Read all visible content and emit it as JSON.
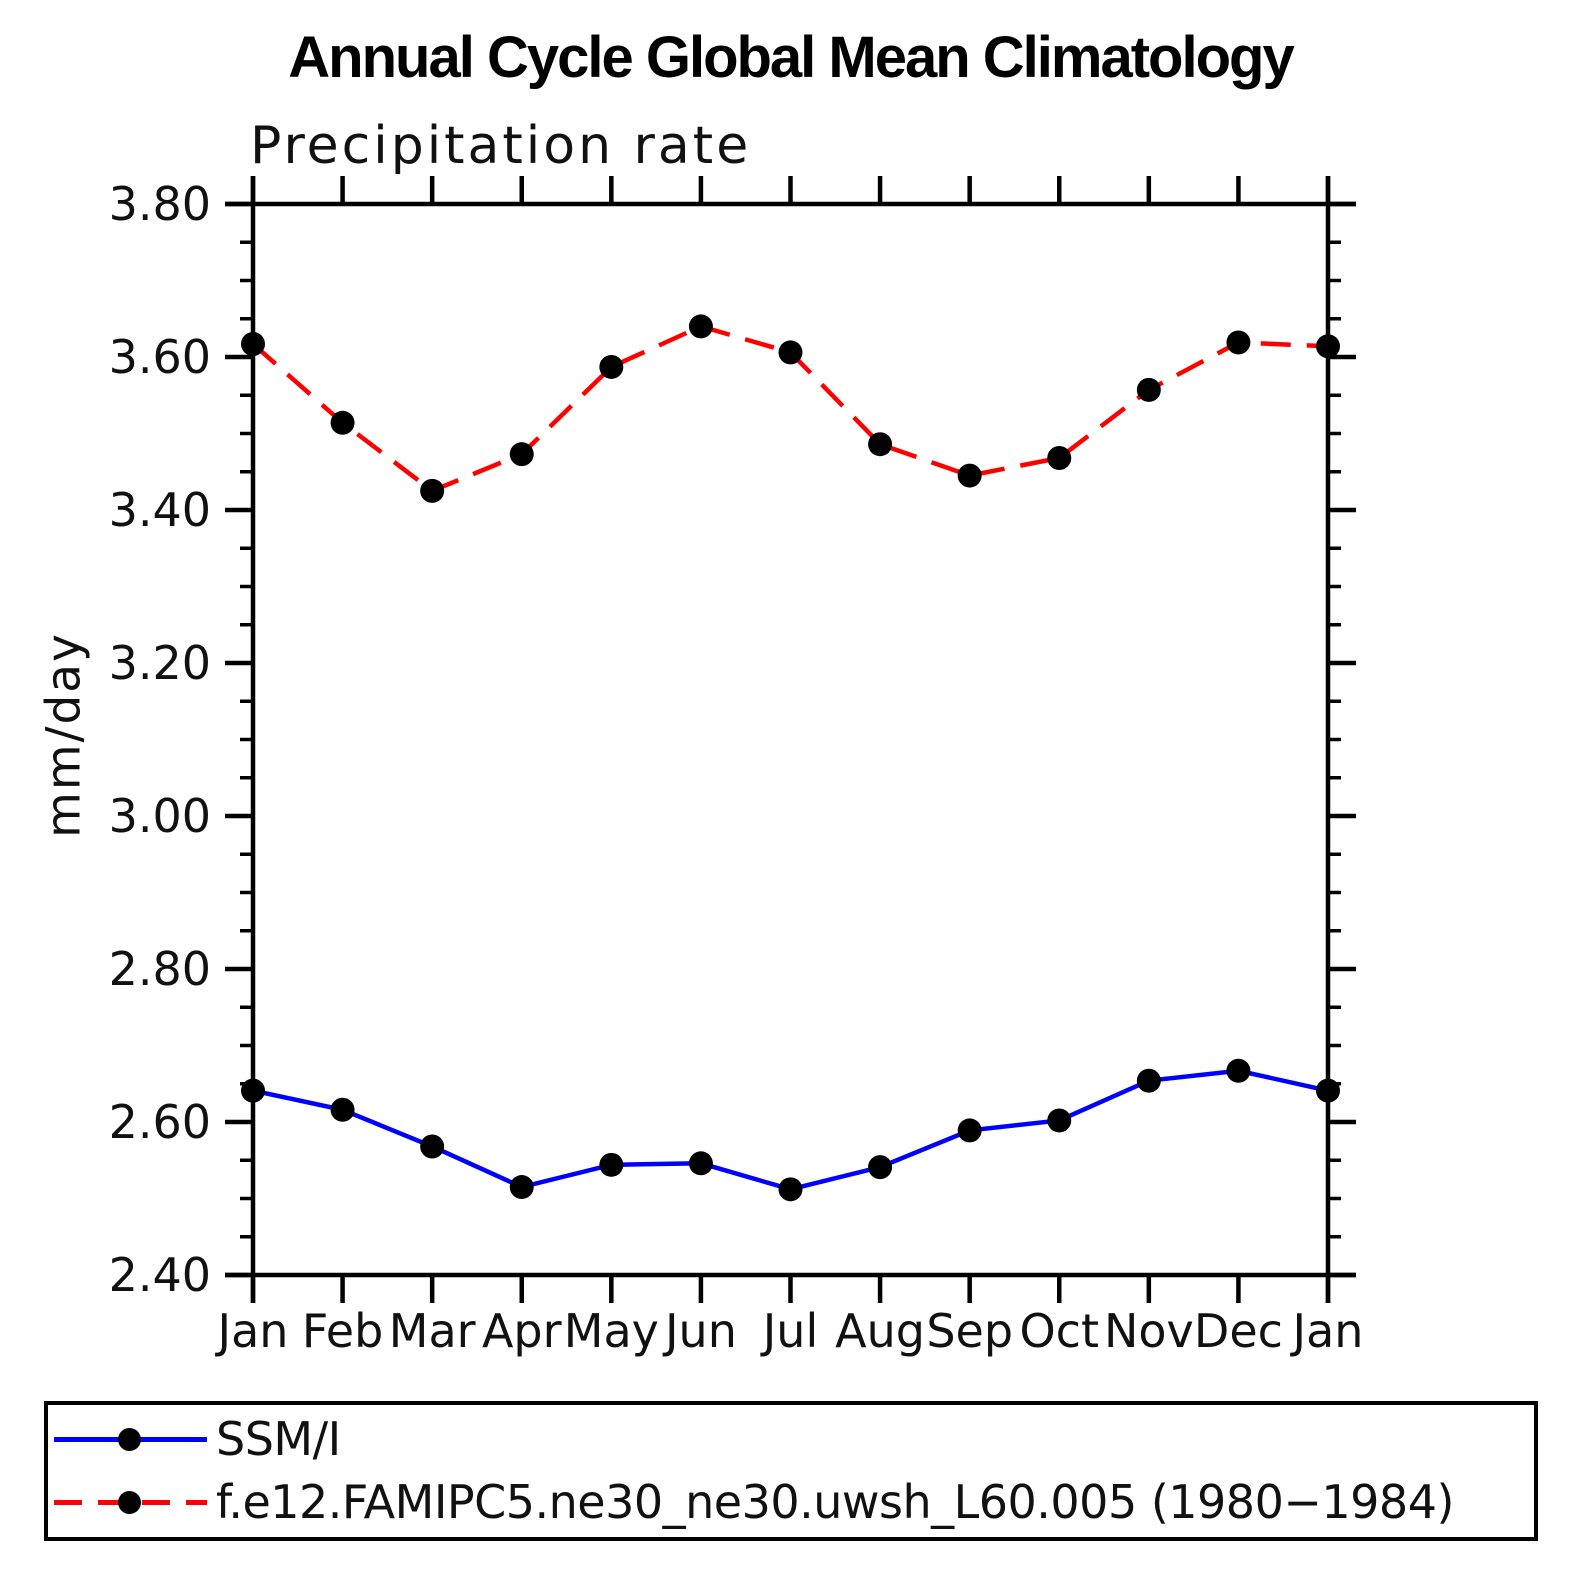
{
  "chart_data": {
    "type": "line",
    "title": "Annual Cycle Global Mean Climatology",
    "subtitle": "Precipitation rate",
    "ylabel": "mm/day",
    "xlabel": "",
    "categories": [
      "Jan",
      "Feb",
      "Mar",
      "Apr",
      "May",
      "Jun",
      "Jul",
      "Aug",
      "Sep",
      "Oct",
      "Nov",
      "Dec",
      "Jan"
    ],
    "series": [
      {
        "name": "SSM/I",
        "color": "#0000ff",
        "line_style": "solid",
        "marker": "circle",
        "marker_color": "#000000",
        "values": [
          2.641,
          2.616,
          2.568,
          2.515,
          2.544,
          2.546,
          2.512,
          2.541,
          2.589,
          2.602,
          2.654,
          2.667,
          2.641
        ]
      },
      {
        "name": "f.e12.FAMIPC5.ne30_ne30.uwsh_L60.005 (1980−1984)",
        "color": "#ff0000",
        "line_style": "dashed",
        "marker": "circle",
        "marker_color": "#000000",
        "values": [
          3.617,
          3.514,
          3.425,
          3.473,
          3.587,
          3.64,
          3.606,
          3.486,
          3.445,
          3.468,
          3.557,
          3.619,
          3.614
        ]
      }
    ],
    "ylim": [
      2.4,
      3.8
    ],
    "y_major_step": 0.2,
    "y_minor_step": 0.05,
    "y_tick_labels": [
      "2.40",
      "2.60",
      "2.80",
      "3.00",
      "3.20",
      "3.40",
      "3.60",
      "3.80"
    ],
    "grid": false,
    "legend_position": "bottom",
    "axis_color": "#000000",
    "tick_direction": "out"
  }
}
